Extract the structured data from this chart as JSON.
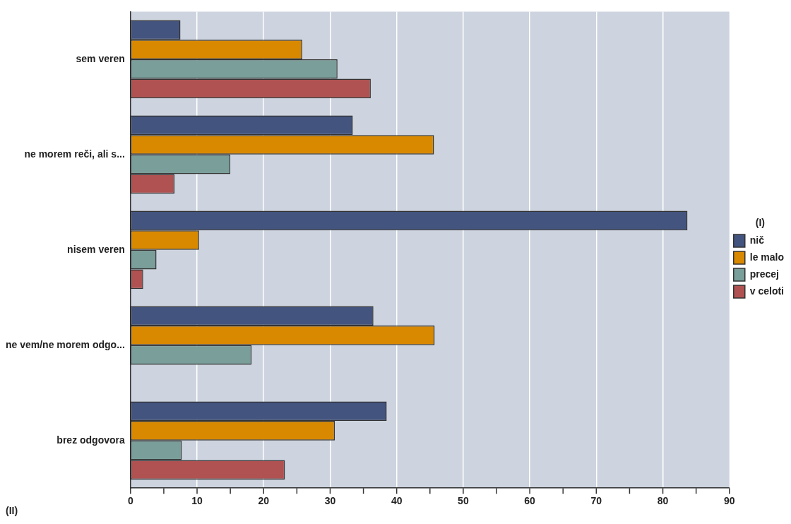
{
  "chart_data": {
    "type": "bar",
    "orientation": "horizontal",
    "ylabel": "(II)",
    "legend_title": "(I)",
    "categories": [
      "sem veren",
      "ne morem reči, ali s...",
      "nisem veren",
      "ne vem/ne morem odgo...",
      "brez odgovora"
    ],
    "series": [
      {
        "name": "nič",
        "color": "#43547f",
        "values": [
          7.5,
          33.4,
          83.7,
          36.5,
          38.5
        ]
      },
      {
        "name": "le malo",
        "color": "#d98900",
        "values": [
          25.8,
          45.6,
          10.3,
          45.7,
          30.7
        ]
      },
      {
        "name": "precej",
        "color": "#7a9e99",
        "values": [
          31.1,
          15.0,
          3.9,
          18.2,
          7.7
        ]
      },
      {
        "name": "v celoti",
        "color": "#b05251",
        "values": [
          36.1,
          6.6,
          1.9,
          null,
          23.2
        ]
      }
    ],
    "xlim": [
      0,
      90
    ],
    "xticks": [
      0,
      {
        "value": 5,
        "label": null
      },
      10,
      {
        "value": 15,
        "label": null
      },
      20,
      {
        "value": 25,
        "label": null
      },
      30,
      {
        "value": 35,
        "label": null
      },
      40,
      {
        "value": 45,
        "label": null
      },
      50,
      {
        "value": 55,
        "label": null
      },
      60,
      {
        "value": 65,
        "label": null
      },
      70,
      {
        "value": 75,
        "label": null
      },
      80,
      {
        "value": 85,
        "label": null
      },
      90
    ],
    "grid": "x",
    "legend": "right"
  }
}
